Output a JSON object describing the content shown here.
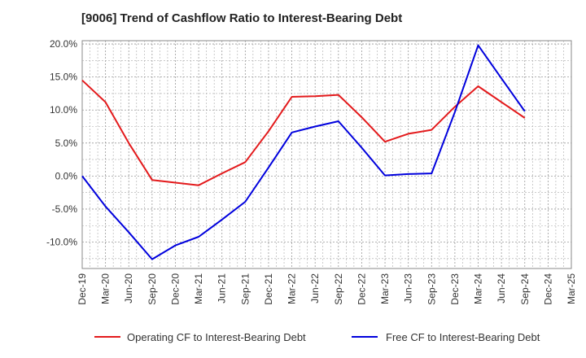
{
  "chart_data": {
    "type": "line",
    "title": "[9006]  Trend of Cashflow Ratio to Interest-Bearing Debt",
    "xlabel": "",
    "ylabel": "",
    "categories": [
      "Dec-19",
      "Mar-20",
      "Jun-20",
      "Sep-20",
      "Dec-20",
      "Mar-21",
      "Jun-21",
      "Sep-21",
      "Dec-21",
      "Mar-22",
      "Jun-22",
      "Sep-22",
      "Dec-22",
      "Mar-23",
      "Jun-23",
      "Sep-23",
      "Dec-23",
      "Mar-24",
      "Jun-24",
      "Sep-24",
      "Dec-24",
      "Mar-25"
    ],
    "ylim": [
      -14,
      20.5
    ],
    "yticks": [
      -10,
      -5,
      0,
      5,
      10,
      15,
      20
    ],
    "ytick_labels": [
      "-10.0%",
      "-5.0%",
      "0.0%",
      "5.0%",
      "10.0%",
      "15.0%",
      "20.0%"
    ],
    "grid": true,
    "legend_position": "bottom",
    "series": [
      {
        "name": "Operating CF to Interest-Bearing Debt",
        "color": "#e31a1c",
        "values": [
          14.5,
          11.2,
          5.0,
          -0.6,
          -1.0,
          -1.4,
          0.4,
          2.1,
          6.8,
          12.0,
          12.1,
          12.3,
          8.9,
          5.2,
          6.4,
          7.0,
          10.5,
          13.6,
          11.2,
          8.8,
          null,
          null
        ]
      },
      {
        "name": "Free CF to Interest-Bearing Debt",
        "color": "#0000dd",
        "values": [
          0.0,
          -4.6,
          -8.5,
          -12.6,
          -10.5,
          -9.2,
          -6.6,
          -3.9,
          1.3,
          6.6,
          7.5,
          8.3,
          4.3,
          0.1,
          0.3,
          0.4,
          9.7,
          19.8,
          14.8,
          9.8,
          null,
          null
        ]
      }
    ]
  }
}
